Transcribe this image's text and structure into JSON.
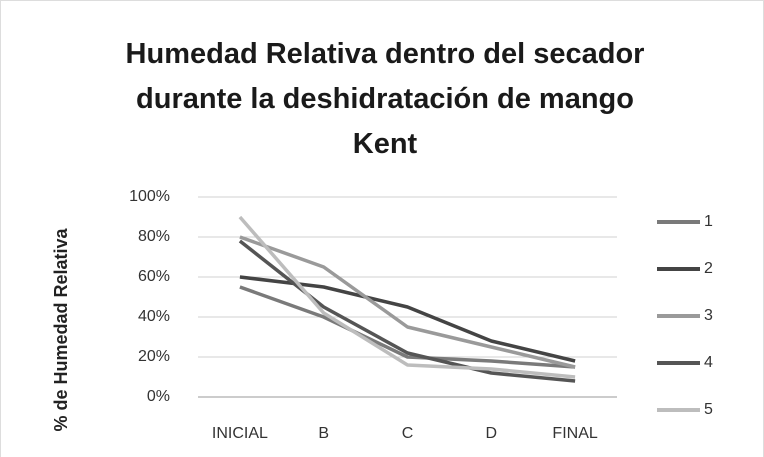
{
  "chart_data": {
    "type": "line",
    "title": "Humedad Relativa dentro del secador durante la deshidratación de mango Kent",
    "y_label": "% de Humedad Relativa",
    "categories": [
      "INICIAL",
      "B",
      "C",
      "D",
      "FINAL"
    ],
    "series": [
      {
        "name": "1",
        "color": "#7a7a7a",
        "values": [
          55,
          40,
          20,
          18,
          15
        ]
      },
      {
        "name": "2",
        "color": "#444444",
        "values": [
          60,
          55,
          45,
          28,
          18
        ]
      },
      {
        "name": "3",
        "color": "#9a9a9a",
        "values": [
          80,
          65,
          35,
          25,
          15
        ]
      },
      {
        "name": "4",
        "color": "#555555",
        "values": [
          78,
          45,
          22,
          12,
          8
        ]
      },
      {
        "name": "5",
        "color": "#bdbdbd",
        "values": [
          90,
          42,
          16,
          14,
          10
        ]
      }
    ],
    "ylim": [
      0,
      100
    ],
    "yticks": [
      {
        "value": 0,
        "label": "0%"
      },
      {
        "value": 20,
        "label": "20%"
      },
      {
        "value": 40,
        "label": "40%"
      },
      {
        "value": 60,
        "label": "60%"
      },
      {
        "value": 80,
        "label": "80%"
      },
      {
        "value": 100,
        "label": "100%"
      }
    ],
    "grid": true,
    "legend": "right"
  }
}
